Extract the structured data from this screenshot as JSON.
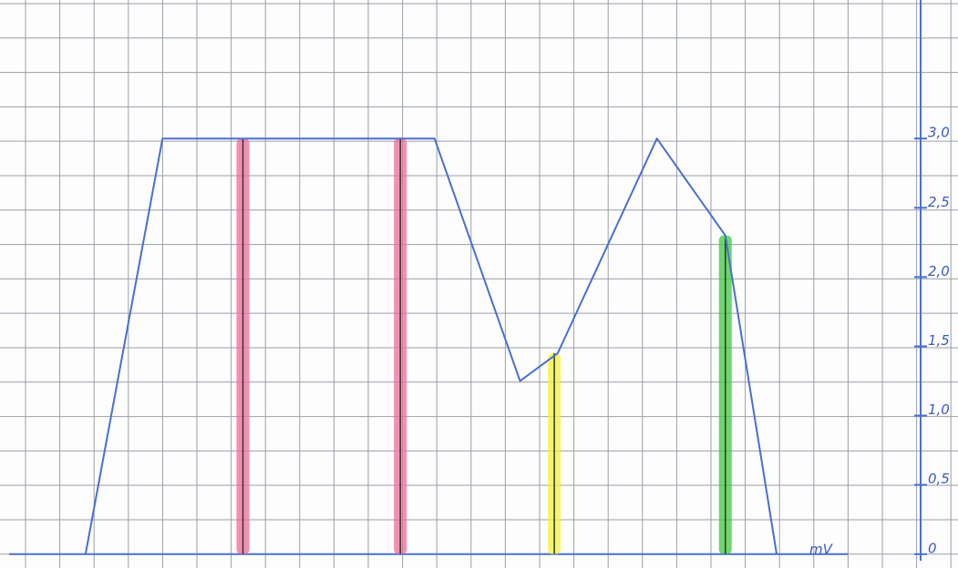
{
  "chart_data": {
    "type": "line",
    "x_label": "mV",
    "x": [
      2.5,
      4.75,
      12.7,
      15.2,
      16.3,
      19.2,
      21.2,
      22.7
    ],
    "values": [
      0,
      3.0,
      3.0,
      1.25,
      1.45,
      3.0,
      2.3,
      0
    ],
    "color": "#4a6fd0",
    "highlights": {
      "x": [
        7.1,
        11.7,
        16.2,
        21.2
      ],
      "values": [
        3.0,
        3.0,
        1.45,
        2.3
      ],
      "colors": [
        "#f06a9a",
        "#f06a9a",
        "#f2f23a",
        "#3cc83c"
      ]
    },
    "xlim": [
      0,
      28
    ],
    "ylim": [
      -0.1,
      4
    ],
    "yticks": [
      0,
      {
        "value": 0.5,
        "label": "0,5"
      },
      {
        "value": 1.0,
        "label": "1,0"
      },
      {
        "value": 1.5,
        "label": "1,5"
      },
      {
        "value": 2.0,
        "label": "2,0"
      },
      {
        "value": 2.5,
        "label": "2,5"
      },
      {
        "value": 3.0,
        "label": "3,0"
      }
    ],
    "grid": true
  }
}
